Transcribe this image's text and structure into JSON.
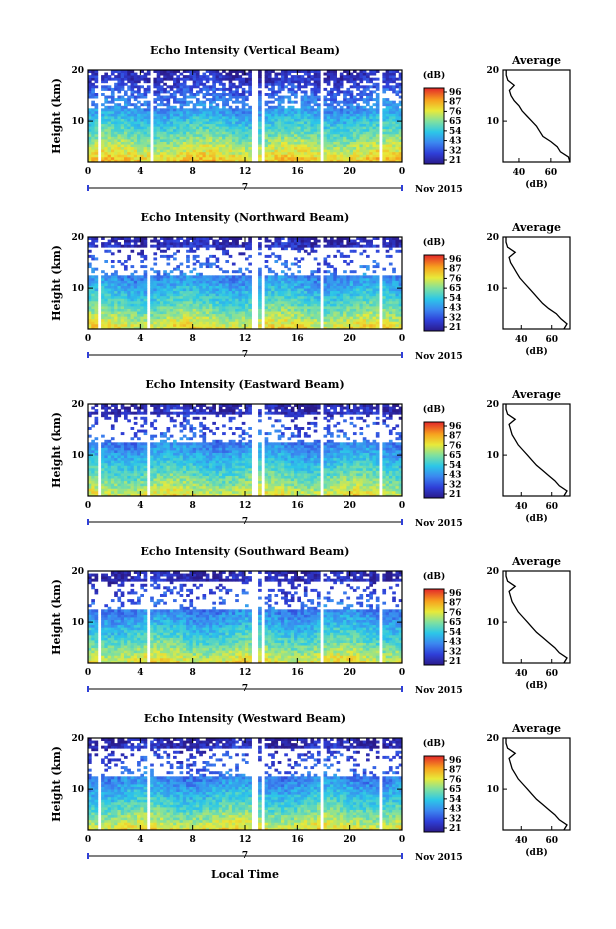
{
  "figure": {
    "date_label": "Nov 2015",
    "day_marker": "7",
    "xlabel": "Local Time",
    "ylabel": "Height (km)",
    "colorbar_unit": "(dB)",
    "colorbar_ticks": [
      "96",
      "87",
      "76",
      "65",
      "54",
      "43",
      "32",
      "21"
    ],
    "x_ticks": [
      "0",
      "4",
      "8",
      "12",
      "16",
      "20",
      "0"
    ],
    "y_ticks": [
      "20",
      "10"
    ],
    "avg_title": "Average",
    "avg_xlabel": "(dB)"
  },
  "chart_data": [
    {
      "type": "heatmap",
      "title": "Echo Intensity (Vertical Beam)",
      "xlabel": "",
      "ylabel": "Height (km)",
      "x_range_hours": [
        0,
        24
      ],
      "y_range_km": [
        2,
        20
      ],
      "colorbar_ticks_dB": [
        96,
        87,
        76,
        65,
        54,
        43,
        32,
        21
      ],
      "data_gaps_hours": [
        [
          0.8,
          1.0
        ],
        [
          4.8,
          5.0
        ],
        [
          5.4,
          5.6
        ],
        [
          9.9,
          10.1
        ],
        [
          12.6,
          12.9
        ],
        [
          13.3,
          13.6
        ],
        [
          17.8,
          18.1
        ],
        [
          22.3,
          22.6
        ]
      ],
      "profile_by_height": {
        "height_km": [
          2,
          4,
          6,
          8,
          10,
          12,
          14,
          16,
          18,
          20
        ],
        "intensity_dB": [
          80,
          72,
          65,
          58,
          52,
          45,
          40,
          35,
          28,
          26
        ]
      },
      "average_profile": {
        "title": "Average",
        "xlabel": "(dB)",
        "x_ticks": [
          "40",
          "60"
        ],
        "xlim": [
          30,
          72
        ],
        "y_ticks": [
          "20",
          "10"
        ],
        "ylim": [
          2,
          20
        ],
        "height_km": [
          2,
          3,
          4,
          5,
          6,
          7,
          8,
          9,
          10,
          11,
          12,
          13,
          14,
          15,
          16,
          17,
          18,
          19,
          20
        ],
        "intensity_dB": [
          72,
          71,
          66,
          64,
          60,
          55,
          53,
          51,
          48,
          45,
          42,
          40,
          37,
          35,
          34,
          37,
          33,
          32,
          32
        ]
      }
    },
    {
      "type": "heatmap",
      "title": "Echo Intensity (Northward Beam)",
      "xlabel": "",
      "ylabel": "Height (km)",
      "x_range_hours": [
        0,
        24
      ],
      "y_range_km": [
        2,
        20
      ],
      "colorbar_ticks_dB": [
        96,
        87,
        76,
        65,
        54,
        43,
        32,
        21
      ],
      "data_gaps_hours": [
        [
          0.8,
          1.0
        ],
        [
          4.6,
          4.8
        ],
        [
          5.4,
          5.6
        ],
        [
          9.9,
          10.1
        ],
        [
          12.6,
          12.9
        ],
        [
          13.3,
          13.6
        ],
        [
          17.8,
          18.1
        ],
        [
          22.3,
          22.6
        ]
      ],
      "profile_by_height": {
        "height_km": [
          2,
          4,
          6,
          8,
          10,
          12,
          14,
          16,
          18,
          20
        ],
        "intensity_dB": [
          76,
          68,
          61,
          55,
          49,
          43,
          38,
          34,
          28,
          25
        ]
      },
      "average_profile": {
        "title": "Average",
        "xlabel": "(dB)",
        "x_ticks": [
          "40",
          "60"
        ],
        "xlim": [
          28,
          72
        ],
        "y_ticks": [
          "20",
          "10"
        ],
        "ylim": [
          2,
          20
        ],
        "height_km": [
          2,
          3,
          4,
          5,
          6,
          7,
          8,
          9,
          10,
          11,
          12,
          13,
          14,
          15,
          16,
          17,
          18,
          19,
          20
        ],
        "intensity_dB": [
          68,
          70,
          66,
          63,
          58,
          54,
          51,
          48,
          45,
          42,
          39,
          37,
          35,
          33,
          32,
          36,
          31,
          30,
          30
        ]
      }
    },
    {
      "type": "heatmap",
      "title": "Echo Intensity (Eastward Beam)",
      "xlabel": "",
      "ylabel": "Height (km)",
      "x_range_hours": [
        0,
        24
      ],
      "y_range_km": [
        2,
        20
      ],
      "colorbar_ticks_dB": [
        96,
        87,
        76,
        65,
        54,
        43,
        32,
        21
      ],
      "data_gaps_hours": [
        [
          0.8,
          1.0
        ],
        [
          4.6,
          4.8
        ],
        [
          5.4,
          5.6
        ],
        [
          9.9,
          10.1
        ],
        [
          12.6,
          12.9
        ],
        [
          13.3,
          13.6
        ],
        [
          17.8,
          18.1
        ],
        [
          22.3,
          22.6
        ]
      ],
      "profile_by_height": {
        "height_km": [
          2,
          4,
          6,
          8,
          10,
          12,
          14,
          16,
          18,
          20
        ],
        "intensity_dB": [
          74,
          66,
          60,
          54,
          48,
          42,
          37,
          33,
          28,
          25
        ]
      },
      "average_profile": {
        "title": "Average",
        "xlabel": "(dB)",
        "x_ticks": [
          "40",
          "60"
        ],
        "xlim": [
          28,
          72
        ],
        "y_ticks": [
          "20",
          "10"
        ],
        "ylim": [
          2,
          20
        ],
        "height_km": [
          2,
          3,
          4,
          5,
          6,
          7,
          8,
          9,
          10,
          11,
          12,
          13,
          14,
          15,
          16,
          17,
          18,
          19,
          20
        ],
        "intensity_dB": [
          68,
          70,
          65,
          62,
          58,
          54,
          50,
          47,
          44,
          41,
          38,
          36,
          34,
          33,
          32,
          36,
          31,
          30,
          30
        ]
      }
    },
    {
      "type": "heatmap",
      "title": "Echo Intensity (Southward Beam)",
      "xlabel": "",
      "ylabel": "Height (km)",
      "x_range_hours": [
        0,
        24
      ],
      "y_range_km": [
        2,
        20
      ],
      "colorbar_ticks_dB": [
        96,
        87,
        76,
        65,
        54,
        43,
        32,
        21
      ],
      "data_gaps_hours": [
        [
          0.8,
          1.0
        ],
        [
          4.6,
          4.8
        ],
        [
          5.4,
          5.6
        ],
        [
          9.9,
          10.1
        ],
        [
          12.6,
          12.9
        ],
        [
          13.3,
          13.6
        ],
        [
          17.8,
          18.1
        ],
        [
          22.3,
          22.6
        ]
      ],
      "profile_by_height": {
        "height_km": [
          2,
          4,
          6,
          8,
          10,
          12,
          14,
          16,
          18,
          20
        ],
        "intensity_dB": [
          75,
          67,
          60,
          54,
          48,
          42,
          37,
          33,
          28,
          25
        ]
      },
      "average_profile": {
        "title": "Average",
        "xlabel": "(dB)",
        "x_ticks": [
          "40",
          "60"
        ],
        "xlim": [
          28,
          72
        ],
        "y_ticks": [
          "20",
          "10"
        ],
        "ylim": [
          2,
          20
        ],
        "height_km": [
          2,
          3,
          4,
          5,
          6,
          7,
          8,
          9,
          10,
          11,
          12,
          13,
          14,
          15,
          16,
          17,
          18,
          19,
          20
        ],
        "intensity_dB": [
          68,
          70,
          65,
          62,
          58,
          54,
          50,
          47,
          44,
          41,
          38,
          36,
          34,
          33,
          32,
          36,
          31,
          30,
          30
        ]
      }
    },
    {
      "type": "heatmap",
      "title": "Echo Intensity (Westward Beam)",
      "xlabel": "Local Time",
      "ylabel": "Height (km)",
      "x_range_hours": [
        0,
        24
      ],
      "y_range_km": [
        2,
        20
      ],
      "colorbar_ticks_dB": [
        96,
        87,
        76,
        65,
        54,
        43,
        32,
        21
      ],
      "data_gaps_hours": [
        [
          0.8,
          1.0
        ],
        [
          4.6,
          4.8
        ],
        [
          5.4,
          5.6
        ],
        [
          9.9,
          10.1
        ],
        [
          12.6,
          12.9
        ],
        [
          13.3,
          13.6
        ],
        [
          17.8,
          18.1
        ],
        [
          22.3,
          22.6
        ]
      ],
      "profile_by_height": {
        "height_km": [
          2,
          4,
          6,
          8,
          10,
          12,
          14,
          16,
          18,
          20
        ],
        "intensity_dB": [
          75,
          67,
          60,
          54,
          48,
          42,
          37,
          33,
          28,
          25
        ]
      },
      "average_profile": {
        "title": "Average",
        "xlabel": "(dB)",
        "x_ticks": [
          "40",
          "60"
        ],
        "xlim": [
          28,
          72
        ],
        "y_ticks": [
          "20",
          "10"
        ],
        "ylim": [
          2,
          20
        ],
        "height_km": [
          2,
          3,
          4,
          5,
          6,
          7,
          8,
          9,
          10,
          11,
          12,
          13,
          14,
          15,
          16,
          17,
          18,
          19,
          20
        ],
        "intensity_dB": [
          68,
          70,
          65,
          62,
          58,
          54,
          50,
          47,
          44,
          41,
          38,
          36,
          34,
          33,
          32,
          36,
          31,
          30,
          30
        ]
      }
    }
  ]
}
